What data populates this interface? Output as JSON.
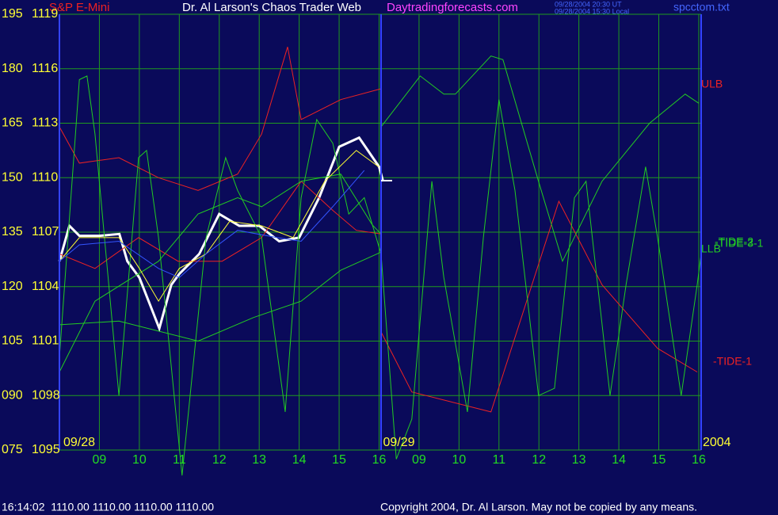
{
  "header": {
    "instrument": "S&P E-Mini",
    "title": "Dr. Al Larson's Chaos Trader Web",
    "site": "Daytradingforecasts.com",
    "time_ut": "09/28/2004 20:30 UT",
    "time_local": "09/28/2004 15:30 Local",
    "file": "spcctom.txt"
  },
  "footer": {
    "quote": "16:14:02  1110.00 1110.00 1110.00 1110.00",
    "copyright": "Copyright 2004, Dr. Al Larson. May not be copied by any means."
  },
  "chart_data": {
    "type": "line",
    "date_labels": [
      {
        "value": 0,
        "label": "09/28"
      },
      {
        "value": 8,
        "label": "09/29"
      },
      {
        "value": 16,
        "label": "2004"
      }
    ],
    "xlim": [
      0,
      16.06
    ],
    "xticks": [
      {
        "value": 1,
        "label": "09"
      },
      {
        "value": 2,
        "label": "10"
      },
      {
        "value": 3,
        "label": "11"
      },
      {
        "value": 4,
        "label": "12"
      },
      {
        "value": 5,
        "label": "13"
      },
      {
        "value": 6,
        "label": "14"
      },
      {
        "value": 7,
        "label": "15"
      },
      {
        "value": 8,
        "label": "16"
      },
      {
        "value": 9,
        "label": "09"
      },
      {
        "value": 10,
        "label": "10"
      },
      {
        "value": 11,
        "label": "11"
      },
      {
        "value": 12,
        "label": "12"
      },
      {
        "value": 13,
        "label": "13"
      },
      {
        "value": 14,
        "label": "14"
      },
      {
        "value": 15,
        "label": "15"
      },
      {
        "value": 16,
        "label": "16"
      }
    ],
    "ylim": [
      1095,
      1119
    ],
    "yticks": [
      1095,
      1098,
      1101,
      1104,
      1107,
      1110,
      1113,
      1116,
      1119
    ],
    "y2lim": [
      75,
      195
    ],
    "y2ticks": [
      {
        "value": 75,
        "label": "075"
      },
      {
        "value": 90,
        "label": "090"
      },
      105,
      120,
      135,
      150,
      165,
      180,
      195
    ],
    "grid": true,
    "series": [
      {
        "color": "#ffffff",
        "width": 3,
        "x": [
          0,
          0.25,
          0.5,
          1,
          1.5,
          1.7,
          2,
          2.5,
          2.8,
          3,
          3.5,
          4,
          4.5,
          5,
          5.5,
          6,
          6.5,
          7,
          7.5,
          8,
          8.1
        ],
        "values": [
          1105.4,
          1107.35,
          1106.8,
          1106.8,
          1106.9,
          1105.4,
          1104.5,
          1101.7,
          1104.1,
          1104.7,
          1105.8,
          1108.0,
          1107.35,
          1107.35,
          1106.5,
          1106.7,
          1108.9,
          1111.7,
          1112.2,
          1110.6,
          1109.8
        ]
      },
      {
        "name": "ULB",
        "color": "#ee2222",
        "width": 1,
        "x": [
          0,
          0.5,
          1.49,
          2.48,
          3.47,
          4.46,
          5.06,
          5.71,
          6.05,
          7.04,
          8.05
        ],
        "values": [
          1112.8,
          1110.8,
          1111.1,
          1110.0,
          1109.3,
          1110.2,
          1112.4,
          1117.2,
          1113.2,
          1114.3,
          1114.9
        ]
      },
      {
        "name": "-TIDE-1",
        "color": "#ee2222",
        "width": 1,
        "x": [
          0,
          0.89,
          1.98,
          2.97,
          4.07,
          5.06,
          6.05,
          6.84,
          7.43,
          8.05,
          null,
          8.05,
          8.82,
          10.8,
          12.5,
          13.58,
          14.97,
          15.96
        ],
        "values": [
          1105.8,
          1105.0,
          1106.7,
          1105.4,
          1105.4,
          1106.7,
          1109.8,
          1108.2,
          1107.1,
          1106.9,
          null,
          1101.5,
          1098.2,
          1097.1,
          1108.7,
          1104.1,
          1100.6,
          1099.3
        ]
      },
      {
        "name": "LLB",
        "color": "#22cc22",
        "width": 1,
        "x": [
          0,
          1.49,
          3.47,
          4.86,
          6.05,
          7.04,
          8.05
        ],
        "values": [
          1101.9,
          1102.1,
          1101.0,
          1102.3,
          1103.2,
          1104.9,
          1105.9
        ]
      },
      {
        "name": "-TIDE-2",
        "color": "#22cc22",
        "width": 1,
        "x": [
          0,
          0.89,
          2.48,
          3.47,
          4.46,
          5.06,
          6.05,
          7.04,
          7.83,
          8.05,
          8.05,
          9.03,
          9.62,
          9.91,
          10.8,
          11.1,
          11.99,
          12.59,
          13.58,
          14.77,
          15.66,
          16.0
        ],
        "values": [
          1099.3,
          1103.2,
          1105.4,
          1108.0,
          1108.9,
          1108.4,
          1109.8,
          1110.2,
          1107.4,
          1106.9,
          1112.8,
          1115.6,
          1114.6,
          1114.6,
          1116.7,
          1116.5,
          1109.8,
          1105.4,
          1109.8,
          1113.0,
          1114.6,
          1114.1
        ]
      },
      {
        "name": "-TIDE-3-1",
        "color": "#22cc22",
        "width": 1,
        "x": [
          0,
          0.5,
          0.69,
          0.89,
          1.49,
          1.98,
          2.18,
          2.48,
          3.07,
          3.67,
          4.16,
          4.46,
          5.06,
          5.65,
          6.05,
          6.44,
          6.84,
          7.24,
          7.63,
          8.05,
          8.43,
          8.82,
          9.32,
          9.62,
          10.21,
          10.61,
          11.0,
          11.4,
          11.99,
          12.39,
          12.89,
          13.18,
          13.78,
          14.18,
          14.67,
          14.97,
          15.56,
          15.96,
          16.06
        ],
        "values": [
          1100.1,
          1115.4,
          1115.6,
          1112.4,
          1098.0,
          1111.1,
          1111.5,
          1106.7,
          1093.6,
          1106.7,
          1111.1,
          1109.3,
          1106.7,
          1097.1,
          1108.9,
          1113.2,
          1111.9,
          1108.0,
          1108.9,
          1105.8,
          1094.5,
          1096.7,
          1109.8,
          1104.5,
          1097.1,
          1106.7,
          1114.3,
          1109.3,
          1098.0,
          1098.4,
          1108.9,
          1109.8,
          1098.0,
          1104.1,
          1110.6,
          1106.7,
          1098.0,
          1104.1,
          1105.8
        ]
      },
      {
        "color": "#ffff33",
        "width": 1,
        "x": [
          0,
          0.5,
          1.49,
          2.0,
          2.48,
          3.0,
          3.67,
          4.26,
          5.06,
          5.85,
          6.64,
          7.43,
          7.99
        ],
        "values": [
          1105.4,
          1106.7,
          1106.7,
          1105.0,
          1103.2,
          1105.0,
          1105.8,
          1107.6,
          1107.35,
          1106.7,
          1109.8,
          1111.5,
          1110.6
        ]
      },
      {
        "color": "#3355ff",
        "width": 1,
        "x": [
          0,
          0.5,
          1.49,
          2.48,
          3.0,
          3.67,
          4.46,
          5.45,
          6.05,
          6.84,
          7.63
        ],
        "values": [
          1105.4,
          1106.3,
          1106.5,
          1105.0,
          1104.5,
          1105.8,
          1107.1,
          1106.7,
          1106.5,
          1108.4,
          1110.4
        ]
      }
    ]
  }
}
